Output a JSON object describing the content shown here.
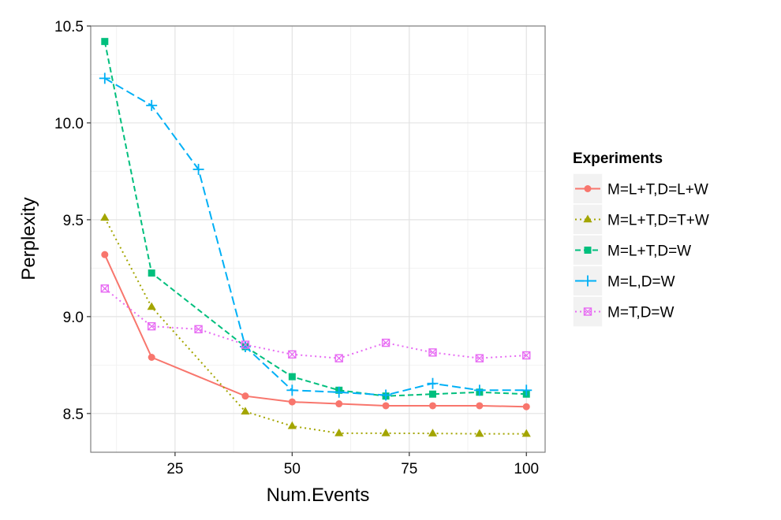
{
  "chart_data": {
    "type": "line",
    "xlabel": "Num.Events",
    "ylabel": "Perplexity",
    "xlim": [
      7,
      104
    ],
    "ylim": [
      8.3,
      10.5
    ],
    "x_ticks": [
      25,
      50,
      75,
      100
    ],
    "x_minor_ticks": [
      12.5,
      37.5,
      62.5,
      87.5
    ],
    "y_ticks": [
      8.5,
      9.0,
      9.5,
      10.0,
      10.5
    ],
    "y_minor_ticks": [
      8.75,
      9.25,
      9.75,
      10.25
    ],
    "y_tick_labels": [
      "8.5",
      "9.0",
      "9.5",
      "10.0",
      "10.5"
    ],
    "grid": true,
    "legend": {
      "title": "Experiments",
      "placement": "right"
    },
    "series": [
      {
        "name": "M=L+T,D=L+W",
        "color": "#F8766D",
        "marker": "circle",
        "dash": "solid",
        "x": [
          10,
          20,
          40,
          50,
          60,
          70,
          80,
          90,
          100
        ],
        "values": [
          9.32,
          8.79,
          8.59,
          8.56,
          8.55,
          8.54,
          8.54,
          8.54,
          8.535
        ]
      },
      {
        "name": "M=L+T,D=T+W",
        "color": "#A3A500",
        "marker": "triangle",
        "dash": "dotted",
        "x": [
          10,
          20,
          40,
          50,
          60,
          70,
          80,
          90,
          100
        ],
        "values": [
          9.51,
          9.05,
          8.51,
          8.435,
          8.398,
          8.398,
          8.397,
          8.395,
          8.395
        ]
      },
      {
        "name": "M=L+T,D=W",
        "color": "#00BF7D",
        "marker": "square",
        "dash": "dashed",
        "x": [
          10,
          20,
          40,
          50,
          60,
          70,
          80,
          90,
          100
        ],
        "values": [
          10.42,
          9.225,
          8.845,
          8.69,
          8.62,
          8.59,
          8.6,
          8.61,
          8.6
        ]
      },
      {
        "name": "M=L,D=W",
        "color": "#00B0F6",
        "marker": "plus",
        "dash": "longdash",
        "x": [
          10,
          20,
          30,
          40,
          50,
          60,
          70,
          80,
          90,
          100
        ],
        "values": [
          10.23,
          10.09,
          9.76,
          8.845,
          8.62,
          8.61,
          8.595,
          8.655,
          8.62,
          8.62
        ]
      },
      {
        "name": "M=T,D=W",
        "color": "#E76BF3",
        "marker": "boxcross",
        "dash": "dotted",
        "x": [
          10,
          20,
          30,
          40,
          50,
          60,
          70,
          80,
          90,
          100
        ],
        "values": [
          9.145,
          8.95,
          8.935,
          8.855,
          8.805,
          8.785,
          8.865,
          8.815,
          8.785,
          8.8
        ]
      }
    ]
  }
}
